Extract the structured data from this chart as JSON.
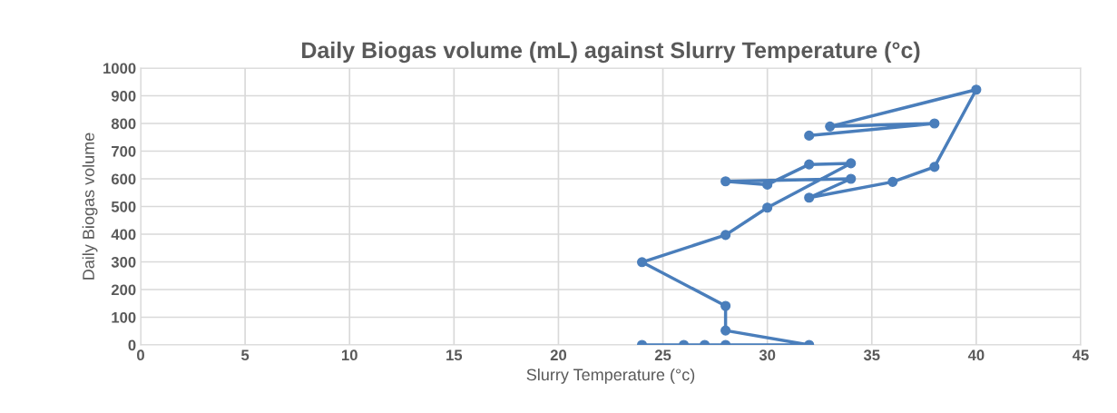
{
  "chart_data": {
    "type": "line",
    "title": "Daily Biogas volume (mL) against Slurry Temperature (°c)",
    "xlabel": "Slurry Temperature (°c)",
    "ylabel": "Daily Biogas volume",
    "series": [
      {
        "color": "#4a7ebb",
        "x": [
          24,
          26,
          27,
          28,
          32,
          28,
          28,
          24,
          28,
          30,
          34,
          32,
          30,
          28,
          34,
          32,
          36,
          38,
          40,
          33,
          38,
          32
        ],
        "values": [
          0,
          0,
          0,
          0,
          0,
          52,
          141,
          299,
          397,
          496,
          656,
          652,
          579,
          591,
          600,
          532,
          589,
          643,
          922,
          789,
          800,
          756
        ]
      }
    ],
    "xlim": [
      0,
      45
    ],
    "xticks": [
      0,
      5,
      10,
      15,
      20,
      25,
      30,
      35,
      40,
      45
    ],
    "ylim": [
      0,
      1000
    ],
    "yticks": [
      0,
      100,
      200,
      300,
      400,
      500,
      600,
      700,
      800,
      900,
      1000
    ],
    "grid": true,
    "marker": "circle",
    "line_style": "solid",
    "legend": false
  }
}
